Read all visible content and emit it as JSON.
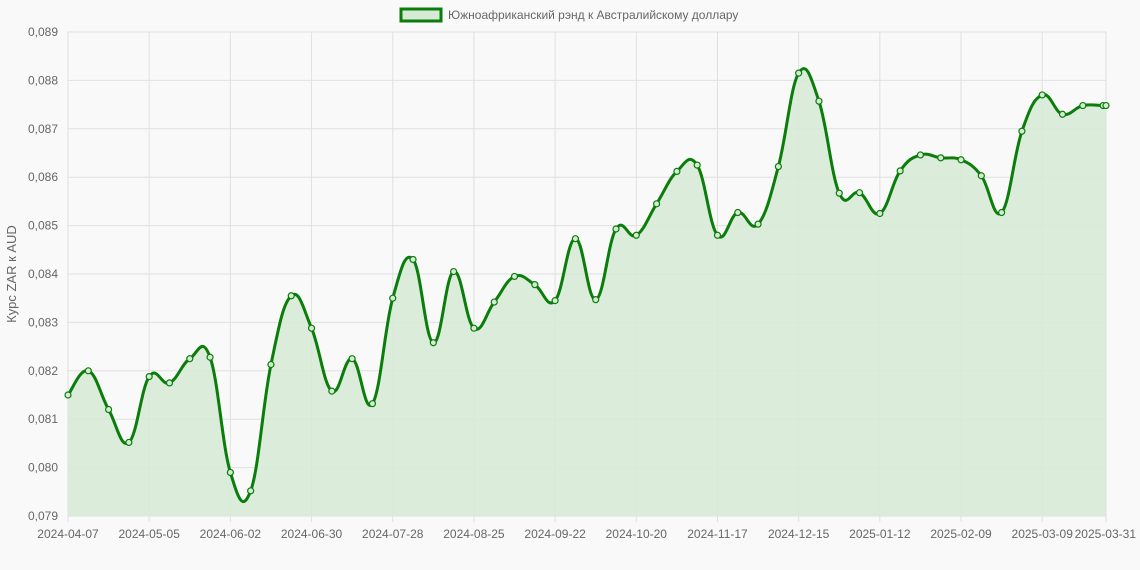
{
  "chart_data": {
    "type": "line",
    "title": "",
    "xlabel": "",
    "ylabel": "Курс ZAR к AUD",
    "legend": "top-center",
    "grid": true,
    "ylim": [
      0.079,
      0.089
    ],
    "yticks": [
      "0,079",
      "0,080",
      "0,081",
      "0,082",
      "0,083",
      "0,084",
      "0,085",
      "0,086",
      "0,087",
      "0,088",
      "0,089"
    ],
    "xticks": [
      "2024-04-07",
      "2024-05-05",
      "2024-06-02",
      "2024-06-30",
      "2024-07-28",
      "2024-08-25",
      "2024-09-22",
      "2024-10-20",
      "2024-11-17",
      "2024-12-15",
      "2025-01-12",
      "2025-02-09",
      "2025-03-09",
      "2025-03-31"
    ],
    "colors": {
      "line": "#0a7d0a",
      "fill": "#d6ead6",
      "grid": "#e0e0e0",
      "background": "#f9f9f9"
    },
    "series": [
      {
        "name": "Южноафриканский рэнд к Австралийскому доллару",
        "x": [
          "2024-04-07",
          "2024-04-14",
          "2024-04-21",
          "2024-04-28",
          "2024-05-05",
          "2024-05-12",
          "2024-05-19",
          "2024-05-26",
          "2024-06-02",
          "2024-06-09",
          "2024-06-16",
          "2024-06-23",
          "2024-06-30",
          "2024-07-07",
          "2024-07-14",
          "2024-07-21",
          "2024-07-28",
          "2024-08-04",
          "2024-08-11",
          "2024-08-18",
          "2024-08-25",
          "2024-09-01",
          "2024-09-08",
          "2024-09-15",
          "2024-09-22",
          "2024-09-29",
          "2024-10-06",
          "2024-10-13",
          "2024-10-20",
          "2024-10-27",
          "2024-11-03",
          "2024-11-10",
          "2024-11-17",
          "2024-11-24",
          "2024-12-01",
          "2024-12-08",
          "2024-12-15",
          "2024-12-22",
          "2024-12-29",
          "2025-01-05",
          "2025-01-12",
          "2025-01-19",
          "2025-01-26",
          "2025-02-02",
          "2025-02-09",
          "2025-02-16",
          "2025-02-23",
          "2025-03-02",
          "2025-03-09",
          "2025-03-16",
          "2025-03-23",
          "2025-03-30",
          "2025-03-31"
        ],
        "values": [
          0.0815,
          0.082,
          0.0812,
          0.08052,
          0.08188,
          0.08175,
          0.08225,
          0.08228,
          0.0799,
          0.07952,
          0.08213,
          0.08355,
          0.08288,
          0.08158,
          0.08225,
          0.08132,
          0.0835,
          0.0843,
          0.08258,
          0.08405,
          0.08288,
          0.08342,
          0.08395,
          0.08378,
          0.08345,
          0.08473,
          0.08347,
          0.08493,
          0.0848,
          0.08545,
          0.08612,
          0.08625,
          0.0848,
          0.08527,
          0.08503,
          0.08622,
          0.08815,
          0.08757,
          0.08567,
          0.08568,
          0.08525,
          0.08613,
          0.08646,
          0.0864,
          0.08636,
          0.08603,
          0.08527,
          0.08695,
          0.0877,
          0.0873,
          0.08748,
          0.08748,
          0.08748
        ]
      }
    ]
  }
}
